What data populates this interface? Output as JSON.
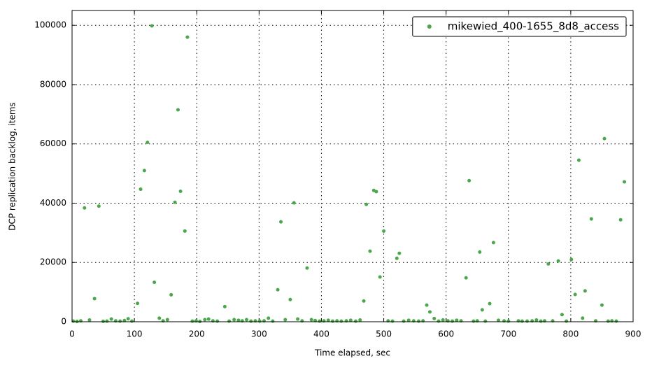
{
  "chart_data": {
    "type": "scatter",
    "xlabel": "Time elapsed, sec",
    "ylabel": "DCP replication backlog, items",
    "xlim": [
      0,
      900
    ],
    "ylim": [
      0,
      105000
    ],
    "xticks": [
      0,
      100,
      200,
      300,
      400,
      500,
      600,
      700,
      800,
      900
    ],
    "yticks": [
      0,
      20000,
      40000,
      60000,
      80000,
      100000
    ],
    "grid": true,
    "legend": "upper right",
    "series": [
      {
        "name": "mikewied_400-1655_8d8_access",
        "color": "#4aa74a",
        "x": [
          20,
          36,
          43,
          105,
          110,
          116,
          121,
          128,
          132,
          159,
          165,
          170,
          174,
          181,
          185,
          245,
          330,
          335,
          350,
          356,
          377,
          468,
          472,
          478,
          484,
          488,
          494,
          500,
          521,
          525,
          569,
          574,
          632,
          637,
          654,
          658,
          670,
          676,
          764,
          780,
          786,
          801,
          807,
          813,
          823,
          833,
          850,
          854,
          880,
          886,
          2,
          8,
          14,
          28,
          50,
          56,
          63,
          70,
          77,
          84,
          90,
          96,
          140,
          146,
          153,
          193,
          199,
          205,
          213,
          219,
          226,
          233,
          252,
          260,
          267,
          273,
          280,
          287,
          294,
          301,
          308,
          315,
          322,
          342,
          362,
          369,
          384,
          390,
          397,
          404,
          411,
          418,
          425,
          432,
          440,
          447,
          455,
          462,
          507,
          514,
          532,
          540,
          548,
          556,
          563,
          581,
          588,
          595,
          603,
          610,
          617,
          624,
          644,
          650,
          663,
          684,
          693,
          700,
          716,
          722,
          730,
          738,
          745,
          752,
          758,
          771,
          793,
          819,
          840,
          860,
          866,
          873
        ],
        "y": [
          38400,
          7800,
          39000,
          6200,
          44700,
          51000,
          60500,
          99800,
          13300,
          9100,
          40300,
          71500,
          44000,
          30600,
          96000,
          5100,
          10800,
          33700,
          7500,
          40100,
          18100,
          7000,
          39600,
          23800,
          44300,
          43900,
          15100,
          30600,
          21400,
          23100,
          5600,
          3300,
          14800,
          47600,
          23500,
          4000,
          6100,
          26700,
          19500,
          20500,
          2400,
          21000,
          9200,
          54500,
          10400,
          34700,
          5600,
          61800,
          34400,
          47200,
          200,
          100,
          300,
          600,
          150,
          200,
          900,
          300,
          200,
          400,
          1000,
          200,
          1200,
          300,
          700,
          200,
          300,
          100,
          700,
          900,
          300,
          200,
          200,
          700,
          500,
          300,
          700,
          200,
          300,
          200,
          300,
          1200,
          200,
          700,
          900,
          300,
          700,
          400,
          200,
          300,
          500,
          200,
          300,
          200,
          300,
          500,
          200,
          600,
          300,
          200,
          200,
          500,
          300,
          200,
          300,
          1100,
          200,
          600,
          300,
          200,
          500,
          300,
          200,
          300,
          200,
          500,
          300,
          200,
          300,
          200,
          200,
          300,
          600,
          200,
          300,
          300,
          200,
          1200,
          300,
          200,
          300,
          200
        ]
      }
    ]
  }
}
